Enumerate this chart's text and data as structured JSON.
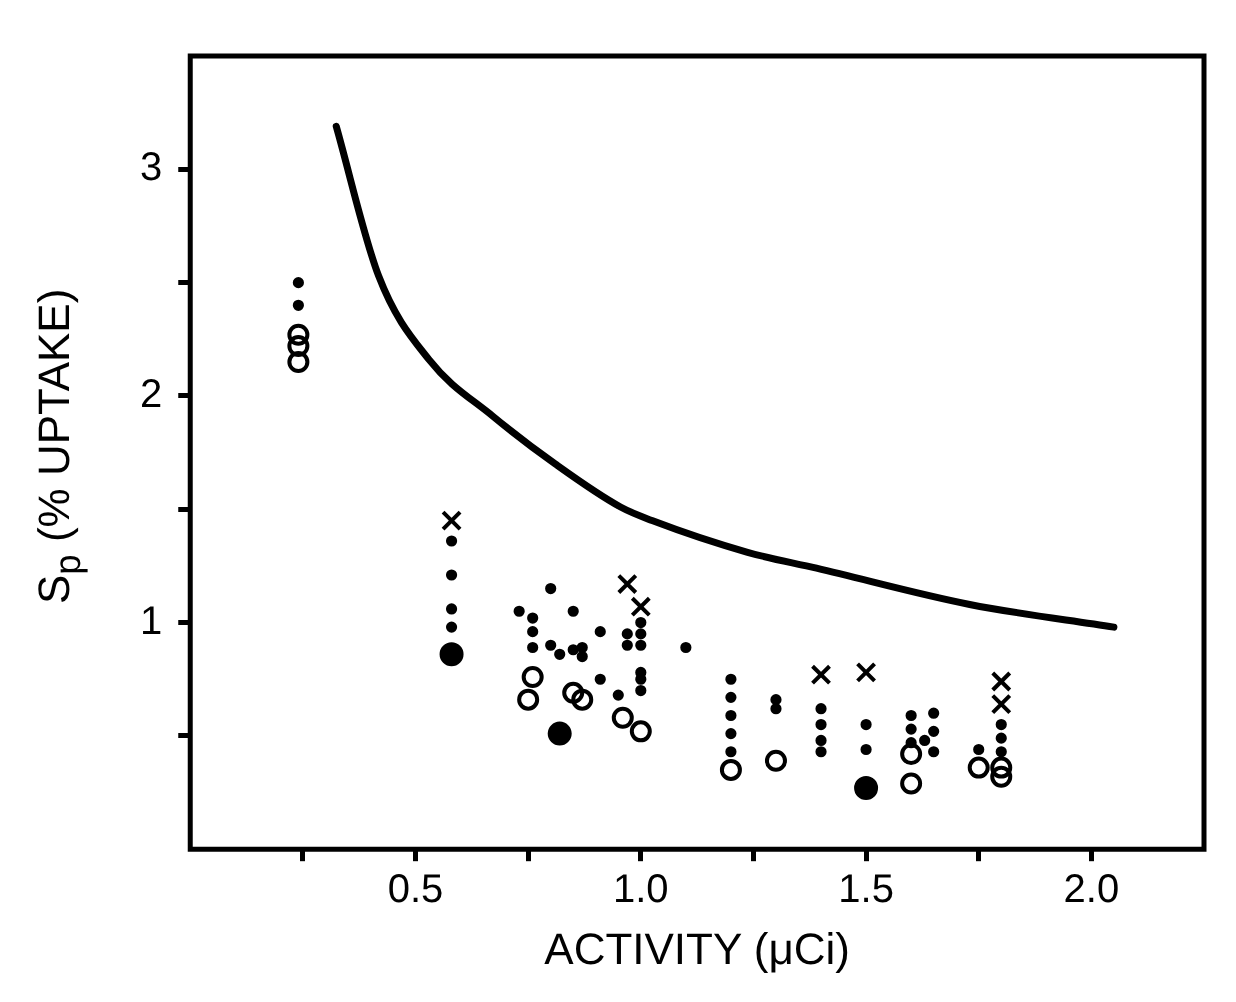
{
  "chart_data": {
    "type": "scatter",
    "xlabel": "ACTIVITY (μCi)",
    "ylabel": "S$_{p}$ (% UPTAKE)",
    "xlim": [
      0,
      2.25
    ],
    "ylim": [
      0,
      3.5
    ],
    "xticks": [
      {
        "value": 0.25,
        "label": null
      },
      0.5,
      {
        "value": 0.75,
        "label": null
      },
      {
        "value": 1,
        "label": "1.0"
      },
      {
        "value": 1.25,
        "label": null
      },
      1.5,
      {
        "value": 1.75,
        "label": null
      },
      {
        "value": 2,
        "label": "2.0"
      }
    ],
    "yticks": [
      {
        "value": 0.5,
        "label": null
      },
      1,
      {
        "value": 1.5,
        "label": null
      },
      2,
      {
        "value": 2.5,
        "label": null
      },
      3
    ],
    "grid": false,
    "legend": false,
    "series": [
      {
        "type": "line",
        "color": "#000000",
        "marker": "none",
        "line_style": "solid",
        "x": [
          0.324,
          0.418,
          0.53,
          0.672,
          0.81,
          0.955,
          1.025,
          1.237,
          1.39,
          1.73,
          2.05
        ],
        "values": [
          3.19,
          2.53,
          2.16,
          1.91,
          1.7,
          1.51,
          1.45,
          1.31,
          1.24,
          1.08,
          0.98
        ]
      },
      {
        "color": "#000000",
        "marker": "circle",
        "x": [
          0.24,
          0.24,
          0.24,
          0.76,
          0.75,
          0.85,
          0.87,
          0.96,
          1.0,
          1.2,
          1.3,
          1.6,
          1.6,
          1.75,
          1.8,
          1.8
        ],
        "values": [
          2.27,
          2.22,
          2.15,
          0.76,
          0.66,
          0.69,
          0.66,
          0.58,
          0.52,
          0.35,
          0.39,
          0.42,
          0.29,
          0.36,
          0.36,
          0.32
        ]
      },
      {
        "color": "#000000",
        "marker": "circle",
        "x": [
          0.58,
          0.82,
          1.5
        ],
        "values": [
          0.86,
          0.51,
          0.27
        ]
      },
      {
        "color": "#000000",
        "marker": "cross",
        "x": [
          0.58,
          0.97,
          1.0,
          1.4,
          1.5,
          1.8,
          1.8
        ],
        "values": [
          1.45,
          1.17,
          1.07,
          0.77,
          0.78,
          0.74,
          0.64
        ]
      },
      {
        "color": "#000000",
        "marker": "circle",
        "x": [
          0.24,
          0.24,
          0.58,
          0.58,
          0.58,
          0.58,
          0.73,
          0.8,
          0.76,
          0.76,
          0.76,
          0.8,
          0.82,
          0.85,
          0.85,
          0.87,
          0.87,
          0.91,
          0.91,
          0.97,
          0.97,
          1.0,
          1.0,
          1.0,
          1.0,
          1.0,
          1.0,
          0.95,
          1.1,
          1.2,
          1.2,
          1.2,
          1.2,
          1.2,
          1.3,
          1.3,
          1.4,
          1.4,
          1.4,
          1.4,
          1.5,
          1.5,
          1.6,
          1.6,
          1.6,
          1.63,
          1.65,
          1.65,
          1.65,
          1.75,
          1.8,
          1.8,
          1.8
        ],
        "values": [
          2.5,
          2.4,
          1.36,
          1.21,
          1.06,
          0.98,
          1.05,
          1.15,
          1.02,
          0.96,
          0.89,
          0.9,
          0.86,
          1.05,
          0.88,
          0.89,
          0.85,
          0.96,
          0.75,
          0.95,
          0.9,
          1.0,
          0.95,
          0.9,
          0.78,
          0.75,
          0.7,
          0.68,
          0.89,
          0.75,
          0.67,
          0.59,
          0.51,
          0.43,
          0.66,
          0.62,
          0.62,
          0.55,
          0.48,
          0.43,
          0.55,
          0.44,
          0.59,
          0.53,
          0.47,
          0.48,
          0.6,
          0.52,
          0.43,
          0.44,
          0.55,
          0.49,
          0.43
        ]
      }
    ]
  }
}
